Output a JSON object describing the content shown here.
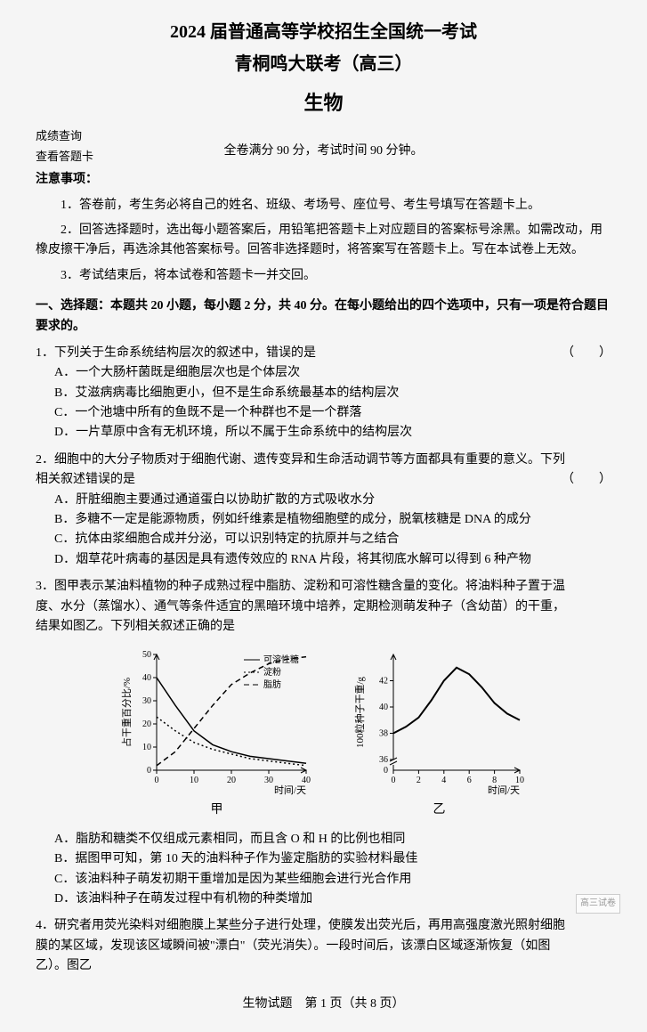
{
  "header": {
    "title_main": "2024 届普通高等学校招生全国统一考试",
    "title_sub": "青桐鸣大联考（高三）",
    "subject": "生物",
    "meta_left_1": "成绩查询",
    "meta_left_2": "查看答题卡",
    "meta_center": "全卷满分 90 分，考试时间 90 分钟。",
    "notice_header": "注意事项：",
    "notice_1": "1．答卷前，考生务必将自己的姓名、班级、考场号、座位号、考生号填写在答题卡上。",
    "notice_2": "2．回答选择题时，选出每小题答案后，用铅笔把答题卡上对应题目的答案标号涂黑。如需改动，用橡皮擦干净后，再选涂其他答案标号。回答非选择题时，将答案写在答题卡上。写在本试卷上无效。",
    "notice_3": "3．考试结束后，将本试卷和答题卡一并交回。"
  },
  "section1": {
    "header": "一、选择题：本题共 20 小题，每小题 2 分，共 40 分。在每小题给出的四个选项中，只有一项是符合题目要求的。"
  },
  "q1": {
    "stem": "1．下列关于生命系统结构层次的叙述中，错误的是",
    "A": "A．一个大肠杆菌既是细胞层次也是个体层次",
    "B": "B．艾滋病病毒比细胞更小，但不是生命系统最基本的结构层次",
    "C": "C．一个池塘中所有的鱼既不是一个种群也不是一个群落",
    "D": "D．一片草原中含有无机环境，所以不属于生命系统中的结构层次"
  },
  "q2": {
    "stem": "2．细胞中的大分子物质对于细胞代谢、遗传变异和生命活动调节等方面都具有重要的意义。下列相关叙述错误的是",
    "A": "A．肝脏细胞主要通过通道蛋白以协助扩散的方式吸收水分",
    "B": "B．多糖不一定是能源物质，例如纤维素是植物细胞壁的成分，脱氧核糖是 DNA 的成分",
    "C": "C．抗体由浆细胞合成并分泌，可以识别特定的抗原并与之结合",
    "D": "D．烟草花叶病毒的基因是具有遗传效应的 RNA 片段，将其彻底水解可以得到 6 种产物"
  },
  "q3": {
    "stem": "3．图甲表示某油料植物的种子成熟过程中脂肪、淀粉和可溶性糖含量的变化。将油料种子置于温度、水分（蒸馏水）、通气等条件适宜的黑暗环境中培养，定期检测萌发种子（含幼苗）的干重，结果如图乙。下列相关叙述正确的是",
    "A": "A．脂肪和糖类不仅组成元素相同，而且含 O 和 H 的比例也相同",
    "B": "B．据图甲可知，第 10 天的油料种子作为鉴定脂肪的实验材料最佳",
    "C": "C．该油料种子萌发初期干重增加是因为某些细胞会进行光合作用",
    "D": "D．该油料种子在萌发过程中有机物的种类增加"
  },
  "q4": {
    "stem": "4．研究者用荧光染料对细胞膜上某些分子进行处理，使膜发出荧光后，再用高强度激光照射细胞膜的某区域，发现该区域瞬间被\"漂白\"（荧光消失）。一段时间后，该漂白区域逐渐恢复（如图乙）。图乙"
  },
  "chart_jia": {
    "type": "line",
    "title": "甲",
    "xlabel": "时间/天",
    "ylabel": "占干重百分比/%",
    "xlim": [
      0,
      40
    ],
    "ylim": [
      0,
      50
    ],
    "xticks": [
      0,
      10,
      20,
      30,
      40
    ],
    "yticks": [
      0,
      10,
      20,
      30,
      40,
      50
    ],
    "background_color": "#f5f5f5",
    "axis_color": "#000000",
    "legend": {
      "items": [
        "可溶性糖",
        "淀粉",
        "脂肪"
      ],
      "styles": [
        "solid",
        "dotted",
        "dashed"
      ]
    },
    "series": {
      "soluble_sugar": {
        "label": "可溶性糖",
        "dash": "solid",
        "color": "#000000",
        "x": [
          0,
          5,
          10,
          15,
          20,
          25,
          30,
          35,
          40
        ],
        "y": [
          40,
          28,
          17,
          11,
          8,
          6,
          5,
          4,
          3
        ]
      },
      "starch": {
        "label": "淀粉",
        "dash": "dotted",
        "color": "#000000",
        "x": [
          0,
          5,
          10,
          15,
          20,
          25,
          30,
          35,
          40
        ],
        "y": [
          23,
          17,
          12,
          9,
          7,
          5,
          4,
          3,
          2
        ]
      },
      "fat": {
        "label": "脂肪",
        "dash": "dashed",
        "color": "#000000",
        "x": [
          0,
          5,
          10,
          15,
          20,
          25,
          30,
          35,
          40
        ],
        "y": [
          2,
          8,
          18,
          28,
          37,
          42,
          46,
          48,
          49
        ]
      }
    }
  },
  "chart_yi": {
    "type": "line",
    "title": "乙",
    "xlabel": "时间/天",
    "ylabel": "100粒种子干重/g",
    "xlim": [
      0,
      10
    ],
    "ylim_lower": 0,
    "ylim_break_low": 36,
    "ylim_break_high": 44,
    "xticks": [
      0,
      2,
      4,
      6,
      8,
      10
    ],
    "yticks": [
      36,
      38,
      40,
      42
    ],
    "background_color": "#f5f5f5",
    "axis_color": "#000000",
    "series": {
      "dry_weight": {
        "color": "#000000",
        "dash": "solid",
        "line_width": 2,
        "x": [
          0,
          1,
          2,
          3,
          4,
          5,
          6,
          7,
          8,
          9,
          10
        ],
        "y": [
          38,
          38.5,
          39.2,
          40.5,
          42,
          43,
          42.5,
          41.5,
          40.3,
          39.5,
          39
        ]
      }
    }
  },
  "footer": {
    "page": "生物试题　第 1 页（共 8 页）",
    "watermark": "高三试卷"
  }
}
